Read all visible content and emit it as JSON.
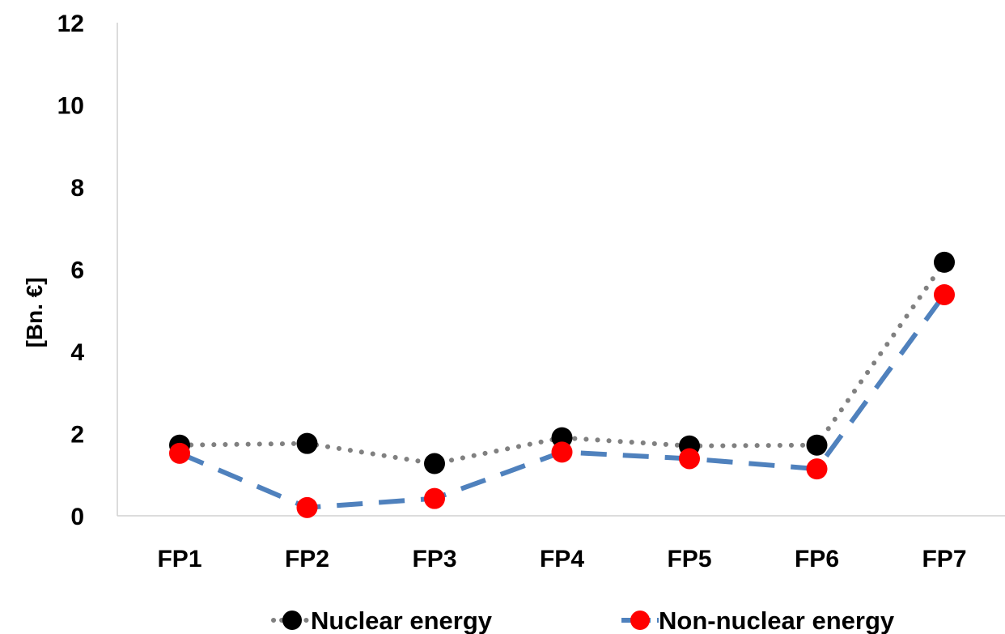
{
  "chart_data": {
    "type": "line",
    "categories": [
      "FP1",
      "FP2",
      "FP3",
      "FP4",
      "FP5",
      "FP6",
      "FP7"
    ],
    "series": [
      {
        "name": "Nuclear energy",
        "values": [
          1.72,
          1.76,
          1.27,
          1.9,
          1.7,
          1.72,
          6.17
        ],
        "line_color": "#808080",
        "marker_color": "#000000",
        "line_style": "dotted"
      },
      {
        "name": "Non-nuclear energy",
        "values": [
          1.52,
          0.2,
          0.42,
          1.55,
          1.39,
          1.14,
          5.38
        ],
        "line_color": "#4F81BD",
        "marker_color": "#FF0000",
        "line_style": "dashed"
      }
    ],
    "ylabel": "[Bn. €]",
    "xlabel": "",
    "ylim": [
      0,
      12
    ],
    "yticks": [
      "0",
      "2",
      "4",
      "6",
      "8",
      "10",
      "12"
    ],
    "grid": false,
    "legend": "bottom"
  }
}
